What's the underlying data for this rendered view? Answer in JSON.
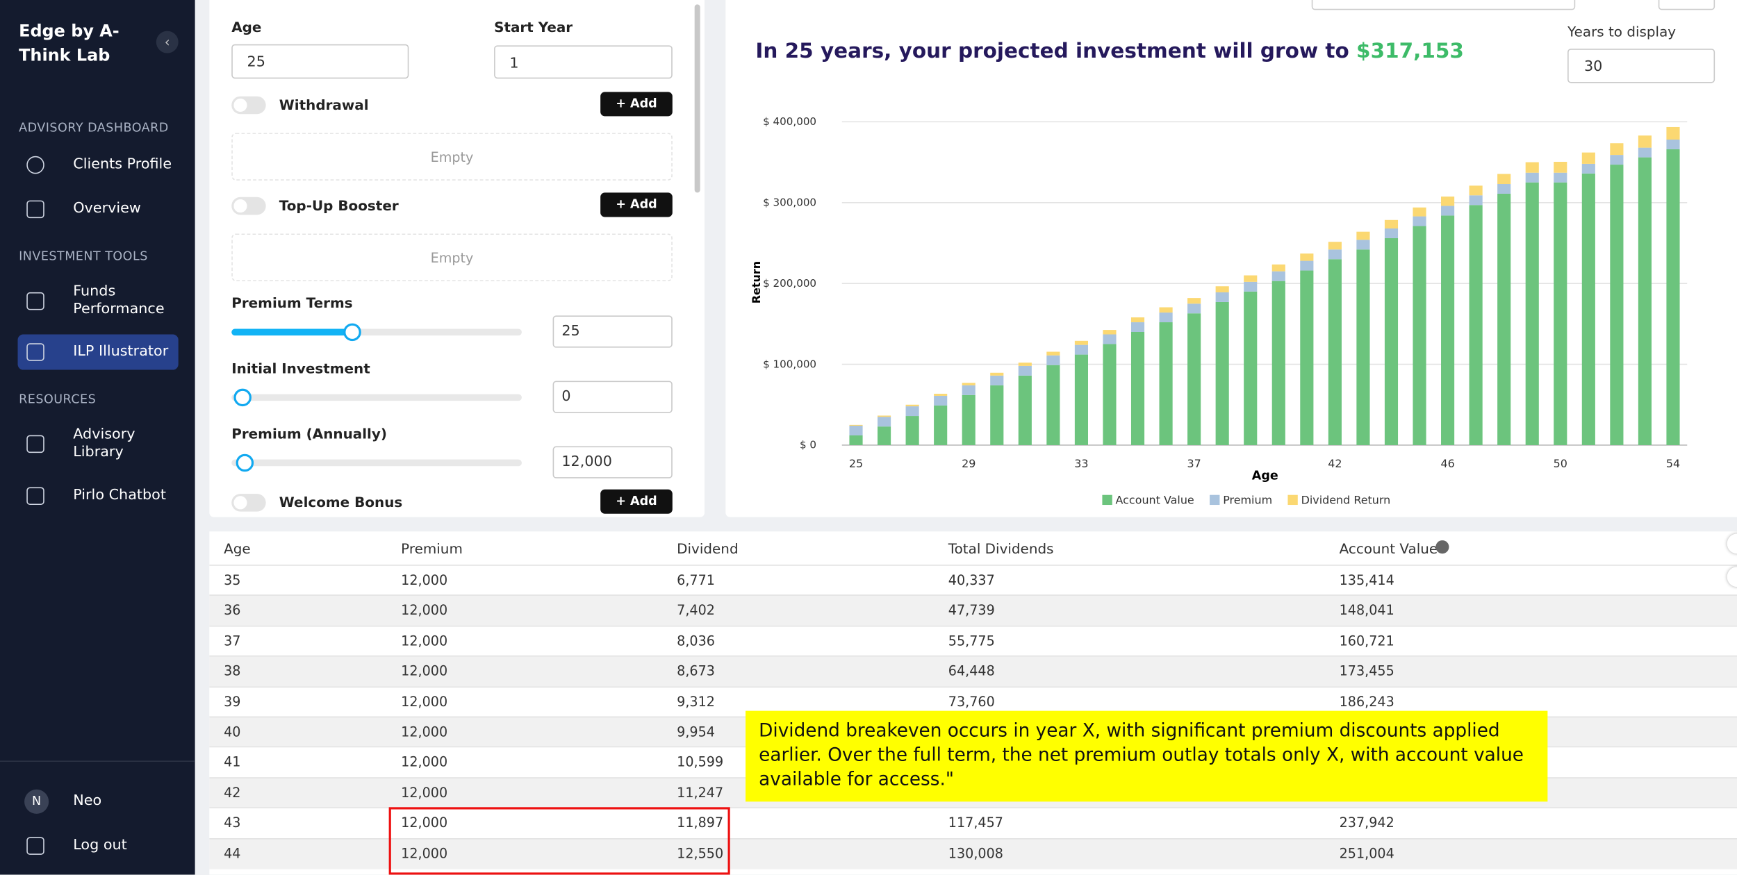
{
  "sidebar": {
    "brand": "Edge by A-Think Lab",
    "sections": [
      {
        "title": "ADVISORY DASHBOARD",
        "items": [
          "Clients Profile",
          "Overview"
        ]
      },
      {
        "title": "INVESTMENT TOOLS",
        "items": [
          "Funds Performance",
          "ILP Illustrator"
        ]
      },
      {
        "title": "RESOURCES",
        "items": [
          "Advisory Library",
          "Pirlo Chatbot"
        ]
      }
    ],
    "user_initial": "N",
    "user": "Neo",
    "logout": "Log out"
  },
  "form": {
    "age_label": "Age",
    "age_value": "25",
    "start_year_label": "Start Year",
    "start_year_value": "1",
    "withdrawal": "Withdrawal",
    "top_up": "Top-Up Booster",
    "welcome_bonus": "Welcome Bonus",
    "add_label": "+ Add",
    "empty": "Empty",
    "premium_terms_label": "Premium Terms",
    "premium_terms_value": "25",
    "initial_investment_label": "Initial Investment",
    "initial_investment_value": "0",
    "premium_label": "Premium (Annually)",
    "premium_value": "12,000"
  },
  "projection": {
    "headline": "In 25 years, your projected investment will grow to",
    "amount": "$317,153",
    "years_label": "Years to display",
    "years_value": "30"
  },
  "chart_data": {
    "type": "stacked_bar",
    "x_label": "Age",
    "y_label": "Return",
    "categories": [
      "25",
      null,
      null,
      null,
      "29",
      null,
      null,
      null,
      "33",
      null,
      null,
      null,
      "37",
      null,
      null,
      null,
      null,
      "42",
      null,
      null,
      null,
      "46",
      null,
      null,
      null,
      "50",
      null,
      null,
      null,
      "54"
    ],
    "series": [
      {
        "name": "Account Value",
        "color": "#6cc47d",
        "values": [
          12000,
          23000,
          36000,
          49000,
          62000,
          74000,
          86000,
          99000,
          112000,
          125000,
          140000,
          152000,
          163000,
          177000,
          190000,
          203000,
          216000,
          230000,
          242000,
          256000,
          271000,
          284000,
          297000,
          311000,
          325000,
          325000,
          336000,
          347000,
          356000,
          366000
        ]
      },
      {
        "name": "Premium",
        "color": "#a9c3de",
        "values": [
          12000,
          12000,
          12000,
          12000,
          12000,
          12000,
          12000,
          12000,
          12000,
          12000,
          12000,
          12000,
          12000,
          12000,
          12000,
          12000,
          12000,
          12000,
          12000,
          12000,
          12000,
          12000,
          12000,
          12000,
          12000,
          12000,
          12000,
          12000,
          12000,
          12000
        ]
      },
      {
        "name": "Dividend Return",
        "color": "#fbd872",
        "values": [
          1000,
          1500,
          2000,
          2500,
          3000,
          3500,
          4000,
          4500,
          5000,
          5500,
          6000,
          6500,
          7000,
          7500,
          8000,
          8500,
          9000,
          9500,
          10000,
          10500,
          11000,
          11500,
          12000,
          12500,
          13000,
          13500,
          14000,
          14500,
          15000,
          15500
        ]
      }
    ],
    "ylim": [
      0,
      400000
    ],
    "yticks": [
      {
        "value": 0,
        "label": "$ 0"
      },
      {
        "value": 100000,
        "label": "$ 100,000"
      },
      {
        "value": 200000,
        "label": "$ 200,000"
      },
      {
        "value": 300000,
        "label": "$ 300,000"
      },
      {
        "value": 400000,
        "label": "$ 400,000"
      }
    ],
    "grid": true
  },
  "table": {
    "headers": [
      "Age",
      "Premium",
      "Dividend",
      "Total Dividends",
      "Account Value"
    ],
    "rows": [
      [
        "35",
        "12,000",
        "6,771",
        "40,337",
        "135,414"
      ],
      [
        "36",
        "12,000",
        "7,402",
        "47,739",
        "148,041"
      ],
      [
        "37",
        "12,000",
        "8,036",
        "55,775",
        "160,721"
      ],
      [
        "38",
        "12,000",
        "8,673",
        "64,448",
        "173,455"
      ],
      [
        "39",
        "12,000",
        "9,312",
        "73,760",
        "186,243"
      ],
      [
        "40",
        "12,000",
        "9,954",
        "",
        ""
      ],
      [
        "41",
        "12,000",
        "10,599",
        "",
        ""
      ],
      [
        "42",
        "12,000",
        "11,247",
        "",
        ""
      ],
      [
        "43",
        "12,000",
        "11,897",
        "117,457",
        "237,942"
      ],
      [
        "44",
        "12,000",
        "12,550",
        "130,008",
        "251,004"
      ]
    ]
  },
  "annotation": "Dividend breakeven occurs in year X, with significant premium discounts applied earlier. Over the full term, the net premium outlay totals only X, with account value available for access.\""
}
